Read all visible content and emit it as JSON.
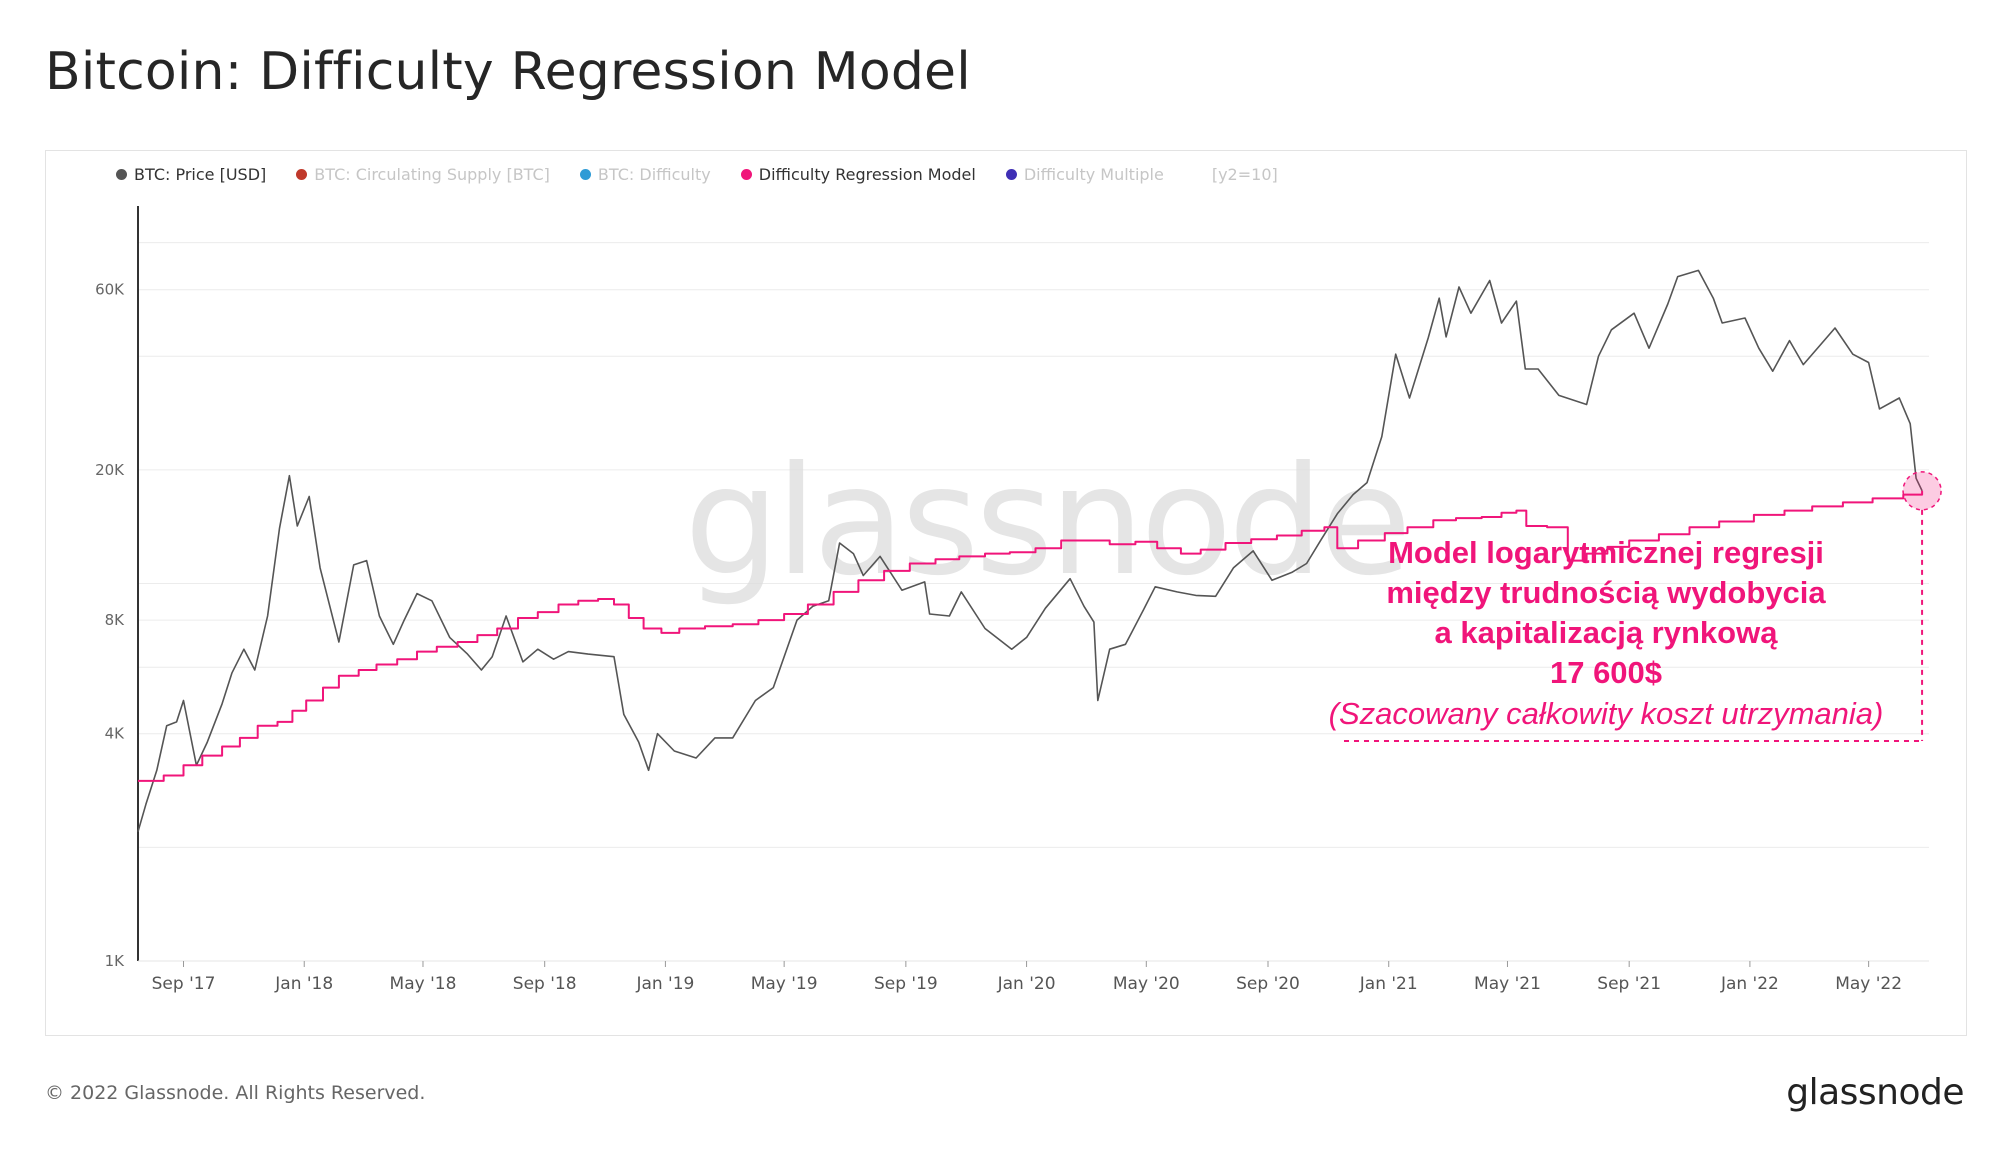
{
  "page": {
    "title": "Bitcoin: Difficulty Regression Model",
    "copyright": "© 2022 Glassnode. All Rights Reserved.",
    "brand": "glassnode",
    "watermark": "glassnode"
  },
  "legend": {
    "items": [
      {
        "label": "BTC: Price [USD]",
        "color": "#555555",
        "active": true
      },
      {
        "label": "BTC: Circulating Supply [BTC]",
        "color": "#c0392b",
        "active": false
      },
      {
        "label": "BTC: Difficulty",
        "color": "#2e9bd6",
        "active": false
      },
      {
        "label": "Difficulty Regression Model",
        "color": "#f0157a",
        "active": true
      },
      {
        "label": "Difficulty Multiple",
        "color": "#3f2fb5",
        "active": false
      }
    ],
    "extra": "[y2=10]"
  },
  "chart_data": {
    "type": "line",
    "y_scale": "log",
    "ylim": [
      1000,
      100000
    ],
    "y_ticks": [
      {
        "label": "1K",
        "value": 1000
      },
      {
        "label": "4K",
        "value": 4000
      },
      {
        "label": "8K",
        "value": 8000
      },
      {
        "label": "20K",
        "value": 20000
      },
      {
        "label": "60K",
        "value": 60000
      }
    ],
    "y_gridlines": [
      1000,
      2000,
      4000,
      6000,
      8000,
      10000,
      20000,
      40000,
      60000,
      80000
    ],
    "x_range": [
      "2017-07-17",
      "2022-07-01"
    ],
    "x_ticks": [
      {
        "label": "Sep '17",
        "date": "2017-09-01"
      },
      {
        "label": "Jan '18",
        "date": "2018-01-01"
      },
      {
        "label": "May '18",
        "date": "2018-05-01"
      },
      {
        "label": "Sep '18",
        "date": "2018-09-01"
      },
      {
        "label": "Jan '19",
        "date": "2019-01-01"
      },
      {
        "label": "May '19",
        "date": "2019-05-01"
      },
      {
        "label": "Sep '19",
        "date": "2019-09-01"
      },
      {
        "label": "Jan '20",
        "date": "2020-01-01"
      },
      {
        "label": "May '20",
        "date": "2020-05-01"
      },
      {
        "label": "Sep '20",
        "date": "2020-09-01"
      },
      {
        "label": "Jan '21",
        "date": "2021-01-01"
      },
      {
        "label": "May '21",
        "date": "2021-05-01"
      },
      {
        "label": "Sep '21",
        "date": "2021-09-01"
      },
      {
        "label": "Jan '22",
        "date": "2022-01-01"
      },
      {
        "label": "May '22",
        "date": "2022-05-01"
      }
    ],
    "series": [
      {
        "name": "BTC: Price [USD]",
        "color": "#555555",
        "points": [
          [
            "2017-07-17",
            2200
          ],
          [
            "2017-07-25",
            2600
          ],
          [
            "2017-08-05",
            3200
          ],
          [
            "2017-08-15",
            4200
          ],
          [
            "2017-08-25",
            4300
          ],
          [
            "2017-09-01",
            4900
          ],
          [
            "2017-09-14",
            3300
          ],
          [
            "2017-09-25",
            3800
          ],
          [
            "2017-10-10",
            4800
          ],
          [
            "2017-10-20",
            5800
          ],
          [
            "2017-11-01",
            6700
          ],
          [
            "2017-11-12",
            5900
          ],
          [
            "2017-11-25",
            8200
          ],
          [
            "2017-12-07",
            14000
          ],
          [
            "2017-12-17",
            19300
          ],
          [
            "2017-12-25",
            14200
          ],
          [
            "2018-01-06",
            17000
          ],
          [
            "2018-01-17",
            11000
          ],
          [
            "2018-02-05",
            7000
          ],
          [
            "2018-02-20",
            11200
          ],
          [
            "2018-03-05",
            11500
          ],
          [
            "2018-03-18",
            8200
          ],
          [
            "2018-04-01",
            6900
          ],
          [
            "2018-04-12",
            8000
          ],
          [
            "2018-04-25",
            9400
          ],
          [
            "2018-05-10",
            9000
          ],
          [
            "2018-05-28",
            7200
          ],
          [
            "2018-06-15",
            6500
          ],
          [
            "2018-06-29",
            5900
          ],
          [
            "2018-07-10",
            6400
          ],
          [
            "2018-07-24",
            8200
          ],
          [
            "2018-08-10",
            6200
          ],
          [
            "2018-08-25",
            6700
          ],
          [
            "2018-09-10",
            6300
          ],
          [
            "2018-09-25",
            6600
          ],
          [
            "2018-10-15",
            6500
          ],
          [
            "2018-11-10",
            6400
          ],
          [
            "2018-11-20",
            4500
          ],
          [
            "2018-12-05",
            3800
          ],
          [
            "2018-12-15",
            3200
          ],
          [
            "2018-12-24",
            4000
          ],
          [
            "2019-01-10",
            3600
          ],
          [
            "2019-02-01",
            3450
          ],
          [
            "2019-02-20",
            3900
          ],
          [
            "2019-03-10",
            3900
          ],
          [
            "2019-04-02",
            4900
          ],
          [
            "2019-04-20",
            5300
          ],
          [
            "2019-05-14",
            8000
          ],
          [
            "2019-05-30",
            8700
          ],
          [
            "2019-06-15",
            9000
          ],
          [
            "2019-06-26",
            12800
          ],
          [
            "2019-07-10",
            12000
          ],
          [
            "2019-07-20",
            10500
          ],
          [
            "2019-08-06",
            11800
          ],
          [
            "2019-08-28",
            9600
          ],
          [
            "2019-09-20",
            10100
          ],
          [
            "2019-09-25",
            8300
          ],
          [
            "2019-10-15",
            8200
          ],
          [
            "2019-10-27",
            9500
          ],
          [
            "2019-11-20",
            7600
          ],
          [
            "2019-12-17",
            6700
          ],
          [
            "2020-01-01",
            7200
          ],
          [
            "2020-01-20",
            8600
          ],
          [
            "2020-02-14",
            10300
          ],
          [
            "2020-02-28",
            8700
          ],
          [
            "2020-03-09",
            7900
          ],
          [
            "2020-03-13",
            4900
          ],
          [
            "2020-03-25",
            6700
          ],
          [
            "2020-04-10",
            6900
          ],
          [
            "2020-04-30",
            8700
          ],
          [
            "2020-05-10",
            9800
          ],
          [
            "2020-06-01",
            9500
          ],
          [
            "2020-06-20",
            9300
          ],
          [
            "2020-07-10",
            9250
          ],
          [
            "2020-07-28",
            11000
          ],
          [
            "2020-08-17",
            12200
          ],
          [
            "2020-09-05",
            10200
          ],
          [
            "2020-09-25",
            10700
          ],
          [
            "2020-10-10",
            11300
          ],
          [
            "2020-10-25",
            13100
          ],
          [
            "2020-11-10",
            15300
          ],
          [
            "2020-11-26",
            17200
          ],
          [
            "2020-12-10",
            18500
          ],
          [
            "2020-12-25",
            24500
          ],
          [
            "2021-01-08",
            40500
          ],
          [
            "2021-01-22",
            31000
          ],
          [
            "2021-02-10",
            44800
          ],
          [
            "2021-02-21",
            57000
          ],
          [
            "2021-02-28",
            45000
          ],
          [
            "2021-03-13",
            61000
          ],
          [
            "2021-03-25",
            52000
          ],
          [
            "2021-04-13",
            63500
          ],
          [
            "2021-04-25",
            49000
          ],
          [
            "2021-05-10",
            56000
          ],
          [
            "2021-05-19",
            37000
          ],
          [
            "2021-06-01",
            37000
          ],
          [
            "2021-06-22",
            31500
          ],
          [
            "2021-07-20",
            29800
          ],
          [
            "2021-08-01",
            40000
          ],
          [
            "2021-08-14",
            47000
          ],
          [
            "2021-09-06",
            52000
          ],
          [
            "2021-09-21",
            42000
          ],
          [
            "2021-10-10",
            55000
          ],
          [
            "2021-10-20",
            65000
          ],
          [
            "2021-11-10",
            67500
          ],
          [
            "2021-11-25",
            57000
          ],
          [
            "2021-12-04",
            49000
          ],
          [
            "2021-12-27",
            50500
          ],
          [
            "2022-01-10",
            42000
          ],
          [
            "2022-01-24",
            36500
          ],
          [
            "2022-02-10",
            44000
          ],
          [
            "2022-02-24",
            38000
          ],
          [
            "2022-03-28",
            47500
          ],
          [
            "2022-04-15",
            40500
          ],
          [
            "2022-05-01",
            38500
          ],
          [
            "2022-05-12",
            29000
          ],
          [
            "2022-06-01",
            31000
          ],
          [
            "2022-06-12",
            26500
          ],
          [
            "2022-06-18",
            19000
          ],
          [
            "2022-06-24",
            17600
          ]
        ]
      },
      {
        "name": "Difficulty Regression Model",
        "color": "#f0157a",
        "points": [
          [
            "2017-07-17",
            3000
          ],
          [
            "2017-08-01",
            3000
          ],
          [
            "2017-08-12",
            3100
          ],
          [
            "2017-09-01",
            3300
          ],
          [
            "2017-09-20",
            3500
          ],
          [
            "2017-10-10",
            3700
          ],
          [
            "2017-10-28",
            3900
          ],
          [
            "2017-11-15",
            4200
          ],
          [
            "2017-12-05",
            4300
          ],
          [
            "2017-12-20",
            4600
          ],
          [
            "2018-01-03",
            4900
          ],
          [
            "2018-01-20",
            5300
          ],
          [
            "2018-02-05",
            5700
          ],
          [
            "2018-02-25",
            5900
          ],
          [
            "2018-03-15",
            6100
          ],
          [
            "2018-04-05",
            6300
          ],
          [
            "2018-04-25",
            6600
          ],
          [
            "2018-05-15",
            6800
          ],
          [
            "2018-06-05",
            7000
          ],
          [
            "2018-06-25",
            7300
          ],
          [
            "2018-07-15",
            7600
          ],
          [
            "2018-08-05",
            8100
          ],
          [
            "2018-08-25",
            8400
          ],
          [
            "2018-09-15",
            8800
          ],
          [
            "2018-10-05",
            9000
          ],
          [
            "2018-10-25",
            9100
          ],
          [
            "2018-11-10",
            8800
          ],
          [
            "2018-11-25",
            8100
          ],
          [
            "2018-12-10",
            7600
          ],
          [
            "2018-12-28",
            7400
          ],
          [
            "2019-01-15",
            7600
          ],
          [
            "2019-02-10",
            7700
          ],
          [
            "2019-03-10",
            7800
          ],
          [
            "2019-04-05",
            8000
          ],
          [
            "2019-05-01",
            8300
          ],
          [
            "2019-05-25",
            8800
          ],
          [
            "2019-06-20",
            9500
          ],
          [
            "2019-07-15",
            10200
          ],
          [
            "2019-08-10",
            10800
          ],
          [
            "2019-09-05",
            11300
          ],
          [
            "2019-10-01",
            11600
          ],
          [
            "2019-10-25",
            11800
          ],
          [
            "2019-11-20",
            12000
          ],
          [
            "2019-12-15",
            12100
          ],
          [
            "2020-01-10",
            12400
          ],
          [
            "2020-02-05",
            13000
          ],
          [
            "2020-02-25",
            13000
          ],
          [
            "2020-03-25",
            12700
          ],
          [
            "2020-04-20",
            12900
          ],
          [
            "2020-05-12",
            12400
          ],
          [
            "2020-06-05",
            12000
          ],
          [
            "2020-06-25",
            12300
          ],
          [
            "2020-07-20",
            12800
          ],
          [
            "2020-08-15",
            13100
          ],
          [
            "2020-09-10",
            13400
          ],
          [
            "2020-10-05",
            13800
          ],
          [
            "2020-10-28",
            14100
          ],
          [
            "2020-11-10",
            12400
          ],
          [
            "2020-12-01",
            13000
          ],
          [
            "2020-12-28",
            13600
          ],
          [
            "2021-01-20",
            14100
          ],
          [
            "2021-02-15",
            14700
          ],
          [
            "2021-03-10",
            14900
          ],
          [
            "2021-04-05",
            15000
          ],
          [
            "2021-04-25",
            15400
          ],
          [
            "2021-05-10",
            15600
          ],
          [
            "2021-05-20",
            14200
          ],
          [
            "2021-06-10",
            14100
          ],
          [
            "2021-07-01",
            11500
          ],
          [
            "2021-07-20",
            12000
          ],
          [
            "2021-08-10",
            12500
          ],
          [
            "2021-09-01",
            13000
          ],
          [
            "2021-10-01",
            13500
          ],
          [
            "2021-11-01",
            14100
          ],
          [
            "2021-12-01",
            14600
          ],
          [
            "2022-01-05",
            15200
          ],
          [
            "2022-02-05",
            15600
          ],
          [
            "2022-03-05",
            16000
          ],
          [
            "2022-04-05",
            16400
          ],
          [
            "2022-05-05",
            16800
          ],
          [
            "2022-06-05",
            17200
          ],
          [
            "2022-06-24",
            17600
          ]
        ]
      }
    ],
    "annotation": {
      "lines": [
        "Model logarytmicznej regresji",
        "między trudnością wydobycia",
        "a kapitalizacją rynkową",
        "17 600$"
      ],
      "subtitle": "(Szacowany całkowity koszt utrzymania)",
      "color": "#f0157a",
      "marker_date": "2022-06-24",
      "marker_value": 17600
    }
  }
}
